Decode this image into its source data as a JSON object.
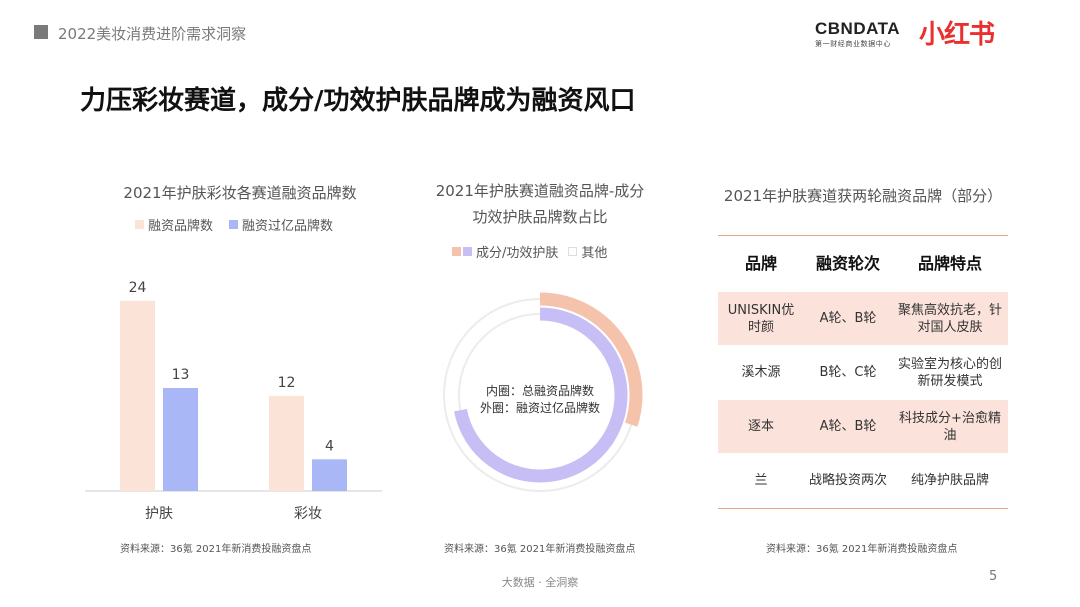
{
  "header": {
    "title": "2022美妆消费进阶需求洞察"
  },
  "logos": {
    "cbn_main": "CBNDATA",
    "cbn_sub": "第一财经商业数据中心",
    "xhs": "小红书"
  },
  "heading": "力压彩妆赛道，成分/功效护肤品牌成为融资风口",
  "colors": {
    "peach": "#fbe3d8",
    "blue": "#a9b7f6",
    "orange": "#f5c2ac",
    "lavender": "#c6bef4",
    "ring_gray": "#ececec"
  },
  "bar_panel": {
    "title": "2021年护肤彩妆各赛道融资品牌数",
    "legend": [
      "融资品牌数",
      "融资过亿品牌数"
    ],
    "source": "资料来源：36氪 2021年新消费投融资盘点"
  },
  "donut_panel": {
    "title_line1": "2021年护肤赛道融资品牌-成分",
    "title_line2": "功效护肤品牌数占比",
    "legend": [
      "成分/功效护肤",
      "其他"
    ],
    "center_line1": "内圈：总融资品牌数",
    "center_line2": "外圈：融资过亿品牌数",
    "source": "资料来源：36氪 2021年新消费投融资盘点"
  },
  "table_panel": {
    "title": "2021年护肤赛道获两轮融资品牌（部分）",
    "headers": [
      "品牌",
      "融资轮次",
      "品牌特点"
    ],
    "rows": [
      {
        "brand": "UNISKIN优时颜",
        "rounds": "A轮、B轮",
        "feature": "聚焦高效抗老，针对国人皮肤"
      },
      {
        "brand": "溪木源",
        "rounds": "B轮、C轮",
        "feature": "实验室为核心的创新研发模式"
      },
      {
        "brand": "逐本",
        "rounds": "A轮、B轮",
        "feature": "科技成分+治愈精油"
      },
      {
        "brand": "兰",
        "rounds": "战略投资两次",
        "feature": "纯净护肤品牌"
      }
    ],
    "source": "资料来源：36氪 2021年新消费投融资盘点"
  },
  "chart_data": [
    {
      "type": "bar",
      "title": "2021年护肤彩妆各赛道融资品牌数",
      "categories": [
        "护肤",
        "彩妆"
      ],
      "series": [
        {
          "name": "融资品牌数",
          "values": [
            24,
            12
          ],
          "color": "#fbe3d8"
        },
        {
          "name": "融资过亿品牌数",
          "values": [
            13,
            4
          ],
          "color": "#a9b7f6"
        }
      ],
      "ylim": [
        0,
        26
      ],
      "grid": false,
      "legend_position": "top"
    },
    {
      "type": "pie",
      "title": "2021年护肤赛道融资品牌-成分功效护肤品牌数占比",
      "labels": [
        "成分/功效护肤",
        "其他"
      ],
      "inner_ring": {
        "values": [
          0.72,
          0.28
        ],
        "colors": [
          "#c6bef4",
          "#ececec"
        ]
      },
      "outer_ring": {
        "values": [
          0.3,
          0.7
        ],
        "colors": [
          "#f5c2ac",
          "#ececec"
        ]
      },
      "legend_position": "top"
    }
  ],
  "footer": {
    "text": "大数据 · 全洞察",
    "page": "5"
  }
}
